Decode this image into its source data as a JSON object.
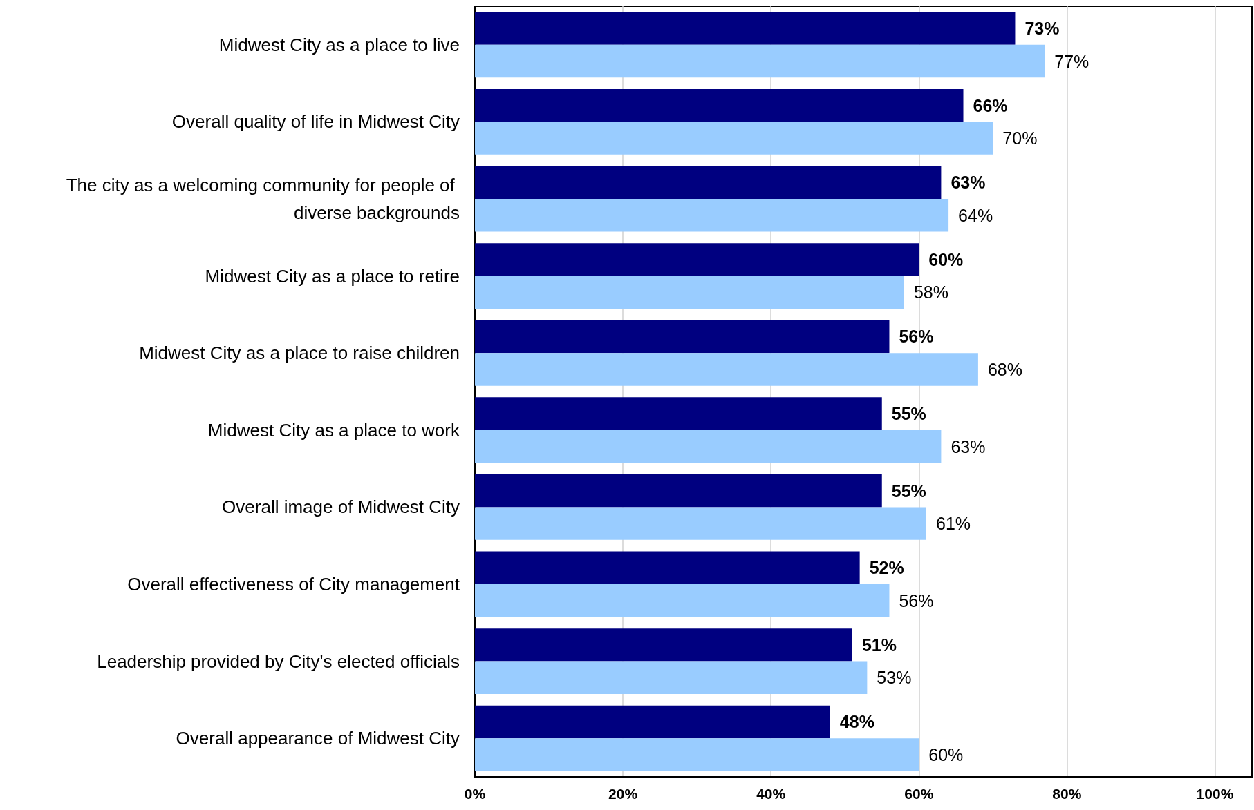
{
  "chart_data": {
    "type": "bar",
    "orientation": "horizontal",
    "categories": [
      "Midwest City as a place to live",
      "Overall quality of life in Midwest City",
      "The city as a welcoming community for people of diverse backgrounds",
      "Midwest City as a place to retire",
      "Midwest City as a place to raise children",
      "Midwest City as a place to work",
      "Overall image of Midwest City",
      "Overall effectiveness of City management",
      "Leadership provided by City's elected officials",
      "Overall appearance of Midwest City"
    ],
    "series": [
      {
        "color": "#000080",
        "values": [
          73,
          66,
          63,
          60,
          56,
          55,
          55,
          52,
          51,
          48
        ],
        "value_labels": [
          "73%",
          "66%",
          "63%",
          "60%",
          "56%",
          "55%",
          "55%",
          "52%",
          "51%",
          "48%"
        ]
      },
      {
        "color": "#99ccff",
        "values": [
          77,
          70,
          64,
          58,
          68,
          63,
          61,
          56,
          53,
          60
        ],
        "value_labels": [
          "77%",
          "70%",
          "64%",
          "58%",
          "68%",
          "63%",
          "61%",
          "56%",
          "53%",
          "60%"
        ]
      }
    ],
    "xlim": [
      0,
      105
    ],
    "xticks": [
      {
        "value": 0,
        "label": "0%"
      },
      {
        "value": 20,
        "label": "20%"
      },
      {
        "value": 40,
        "label": "40%"
      },
      {
        "value": 60,
        "label": "60%"
      },
      {
        "value": 80,
        "label": "80%"
      },
      {
        "value": 100,
        "label": "100%"
      }
    ],
    "grid": "x"
  }
}
